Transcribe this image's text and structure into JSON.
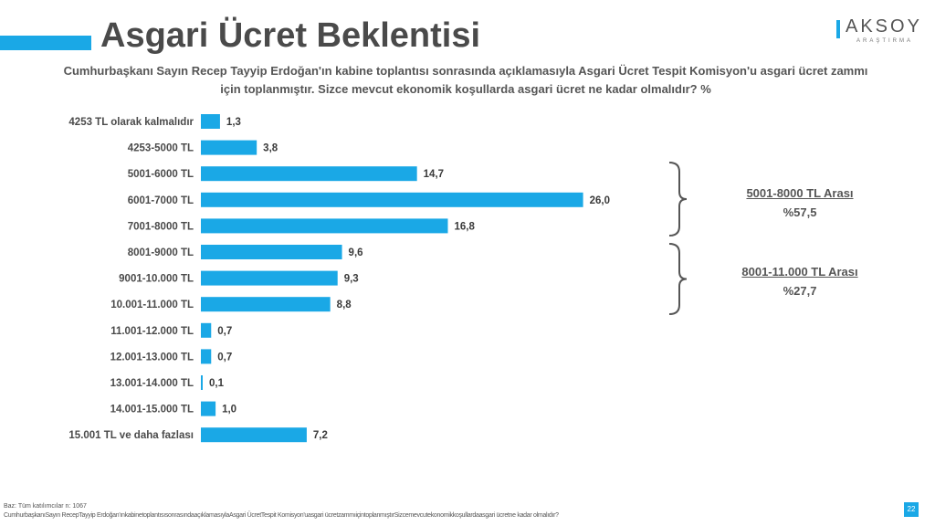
{
  "header": {
    "title": "Asgari Ücret Beklentisi",
    "subtitle": "Cumhurbaşkanı Sayın Recep Tayyip Erdoğan'ın kabine toplantısı sonrasında açıklamasıyla Asgari Ücret Tespit Komisyon'u asgari ücret zammı için toplanmıştır. Sizce mevcut ekonomik koşullarda asgari ücret ne kadar olmalıdır? %"
  },
  "logo": {
    "name": "AKSOY",
    "sub": "ARAŞTIRMA"
  },
  "colors": {
    "accent": "#1aa8e6",
    "bar": "#1aa8e6",
    "text": "#4a4a4a"
  },
  "chart_data": {
    "type": "bar",
    "orientation": "horizontal",
    "categories": [
      "4253 TL olarak kalmalıdır",
      "4253-5000 TL",
      "5001-6000 TL",
      "6001-7000 TL",
      "7001-8000 TL",
      "8001-9000 TL",
      "9001-10.000 TL",
      "10.001-11.000 TL",
      "11.001-12.000 TL",
      "12.001-13.000 TL",
      "13.001-14.000 TL",
      "14.001-15.000 TL",
      "15.001 TL ve daha fazlası"
    ],
    "values": [
      1.3,
      3.8,
      14.7,
      26.0,
      16.8,
      9.6,
      9.3,
      8.8,
      0.7,
      0.7,
      0.1,
      1.0,
      7.2
    ],
    "value_labels": [
      "1,3",
      "3,8",
      "14,7",
      "26,0",
      "16,8",
      "9,6",
      "9,3",
      "8,8",
      "0,7",
      "0,7",
      "0,1",
      "1,0",
      "7,2"
    ],
    "title": "",
    "xlabel": "",
    "ylabel": "",
    "grid": false,
    "legend": "none"
  },
  "groups": [
    {
      "label": "5001-8000 TL Arası",
      "value": "%57,5"
    },
    {
      "label": "8001-11.000 TL Arası",
      "value": "%27,7"
    }
  ],
  "footer": {
    "base": "Baz: Tüm katılımcılar n: 1067",
    "question": "CumhurbaşkanıSayın RecepTayyip Erdoğan'ınkabinetoplantısısonrasındaaçıklamasıylaAsgari ÜcretTespit Komisyon'uasgari ücretzammıiçintoplanmıştırSizcemevcutekonomikkoşullardaasgari ücretne kadar olmalıdır?",
    "page": "22"
  }
}
